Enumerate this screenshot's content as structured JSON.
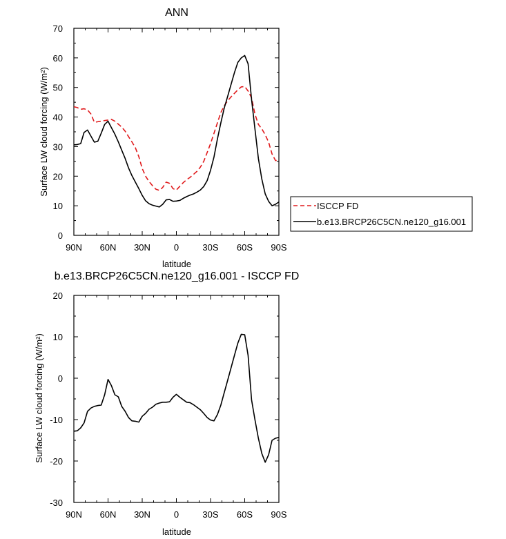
{
  "chart_data": [
    {
      "type": "line",
      "title": "ANN",
      "xlabel": "latitude",
      "ylabel": "Surface LW cloud forcing (W/m²)",
      "xlim": [
        -90,
        90
      ],
      "ylim": [
        0,
        70
      ],
      "x_ticks": [
        -90,
        -60,
        -30,
        0,
        30,
        60,
        90
      ],
      "x_tick_labels": [
        "90N",
        "60N",
        "30N",
        "0",
        "30S",
        "60S",
        "90S"
      ],
      "y_ticks": [
        0,
        10,
        20,
        30,
        40,
        50,
        60,
        70
      ],
      "y_tick_labels": [
        "0",
        "10",
        "20",
        "30",
        "40",
        "50",
        "60",
        "70"
      ],
      "grid": false,
      "legend_position": "outside right",
      "series": [
        {
          "name": "ISCCP FD",
          "color": "#e0191b",
          "dash": "dashed",
          "x": [
            -90,
            -87,
            -84,
            -81,
            -78,
            -75,
            -72,
            -69,
            -66,
            -63,
            -60,
            -57,
            -54,
            -51,
            -48,
            -45,
            -42,
            -39,
            -36,
            -33,
            -30,
            -27,
            -24,
            -21,
            -18,
            -15,
            -12,
            -9,
            -6,
            -3,
            0,
            3,
            6,
            9,
            12,
            15,
            18,
            21,
            24,
            27,
            30,
            33,
            36,
            39,
            42,
            45,
            48,
            51,
            54,
            57,
            60,
            63,
            66,
            69,
            72,
            75,
            78,
            81,
            84,
            87,
            90
          ],
          "y": [
            43.5,
            43.2,
            42.6,
            42.8,
            42.4,
            41.0,
            38.2,
            38.4,
            38.6,
            38.8,
            39.0,
            39.2,
            38.6,
            37.6,
            36.6,
            35.2,
            33.4,
            31.6,
            29.6,
            26.6,
            22.6,
            20.0,
            18.2,
            16.8,
            15.6,
            15.2,
            16.2,
            18.0,
            17.6,
            15.8,
            15.3,
            16.6,
            17.8,
            18.8,
            19.6,
            20.6,
            21.6,
            23.0,
            25.0,
            28.0,
            31.0,
            34.5,
            38.0,
            41.5,
            43.8,
            45.5,
            46.8,
            48.0,
            49.2,
            50.2,
            50.3,
            48.8,
            46.5,
            41.0,
            37.5,
            36.0,
            34.0,
            31.5,
            27.5,
            25.3,
            25.3
          ]
        },
        {
          "name": "b.e13.BRCP26C5CN.ne120_g16.001",
          "color": "#000000",
          "dash": "solid",
          "x": [
            -90,
            -87,
            -84,
            -81,
            -78,
            -75,
            -72,
            -69,
            -66,
            -63,
            -60,
            -57,
            -54,
            -51,
            -48,
            -45,
            -42,
            -39,
            -36,
            -33,
            -30,
            -27,
            -24,
            -21,
            -18,
            -15,
            -12,
            -9,
            -6,
            -3,
            0,
            3,
            6,
            9,
            12,
            15,
            18,
            21,
            24,
            27,
            30,
            33,
            36,
            39,
            42,
            45,
            48,
            51,
            54,
            57,
            60,
            63,
            66,
            69,
            72,
            75,
            78,
            81,
            84,
            87,
            90
          ],
          "y": [
            30.6,
            30.7,
            31.0,
            34.8,
            35.6,
            33.5,
            31.5,
            31.8,
            34.5,
            37.5,
            38.6,
            36.4,
            34.2,
            31.6,
            28.8,
            26.0,
            22.8,
            20.2,
            18.0,
            15.8,
            13.5,
            11.7,
            10.7,
            10.2,
            9.9,
            9.6,
            10.5,
            12.0,
            12.1,
            11.5,
            11.6,
            11.8,
            12.5,
            13.1,
            13.6,
            14.0,
            14.6,
            15.3,
            16.5,
            18.5,
            22.0,
            26.5,
            32.5,
            38.0,
            43.0,
            47.0,
            51.0,
            55.0,
            58.5,
            60.0,
            60.8,
            58.0,
            46.0,
            36.0,
            26.0,
            19.0,
            14.0,
            11.5,
            10.0,
            10.5,
            11.3
          ]
        }
      ]
    },
    {
      "type": "line",
      "title": "b.e13.BRCP26C5CN.ne120_g16.001 - ISCCP FD",
      "xlabel": "latitude",
      "ylabel": "Surface LW cloud forcing (W/m²)",
      "xlim": [
        -90,
        90
      ],
      "ylim": [
        -30,
        20
      ],
      "x_ticks": [
        -90,
        -60,
        -30,
        0,
        30,
        60,
        90
      ],
      "x_tick_labels": [
        "90N",
        "60N",
        "30N",
        "0",
        "30S",
        "60S",
        "90S"
      ],
      "y_ticks": [
        -30,
        -20,
        -10,
        0,
        10,
        20
      ],
      "y_tick_labels": [
        "-30",
        "-20",
        "-10",
        "0",
        "10",
        "20"
      ],
      "grid": false,
      "series": [
        {
          "color": "#000000",
          "dash": "solid",
          "x": [
            -90,
            -87,
            -84,
            -81,
            -78,
            -75,
            -72,
            -69,
            -66,
            -63,
            -60,
            -57,
            -54,
            -51,
            -48,
            -45,
            -42,
            -39,
            -36,
            -33,
            -30,
            -27,
            -24,
            -21,
            -18,
            -15,
            -12,
            -9,
            -6,
            -3,
            0,
            3,
            6,
            9,
            12,
            15,
            18,
            21,
            24,
            27,
            30,
            33,
            36,
            39,
            42,
            45,
            48,
            51,
            54,
            57,
            60,
            63,
            66,
            69,
            72,
            75,
            78,
            81,
            84,
            87,
            90
          ],
          "y": [
            -12.8,
            -12.7,
            -12.0,
            -10.8,
            -8.0,
            -7.2,
            -6.8,
            -6.6,
            -6.5,
            -4.0,
            -0.3,
            -1.8,
            -4.0,
            -4.5,
            -6.8,
            -8.0,
            -9.5,
            -10.3,
            -10.4,
            -10.6,
            -9.2,
            -8.5,
            -7.5,
            -7.0,
            -6.3,
            -6.0,
            -5.8,
            -5.8,
            -5.7,
            -4.6,
            -3.9,
            -4.6,
            -5.2,
            -5.8,
            -5.9,
            -6.4,
            -7.0,
            -7.6,
            -8.5,
            -9.5,
            -10.1,
            -10.3,
            -8.8,
            -6.5,
            -3.5,
            -0.5,
            2.5,
            5.5,
            8.5,
            10.6,
            10.5,
            5.5,
            -5.2,
            -10.0,
            -14.5,
            -18.2,
            -20.3,
            -18.5,
            -15.0,
            -14.5,
            -14.3
          ]
        }
      ]
    }
  ]
}
